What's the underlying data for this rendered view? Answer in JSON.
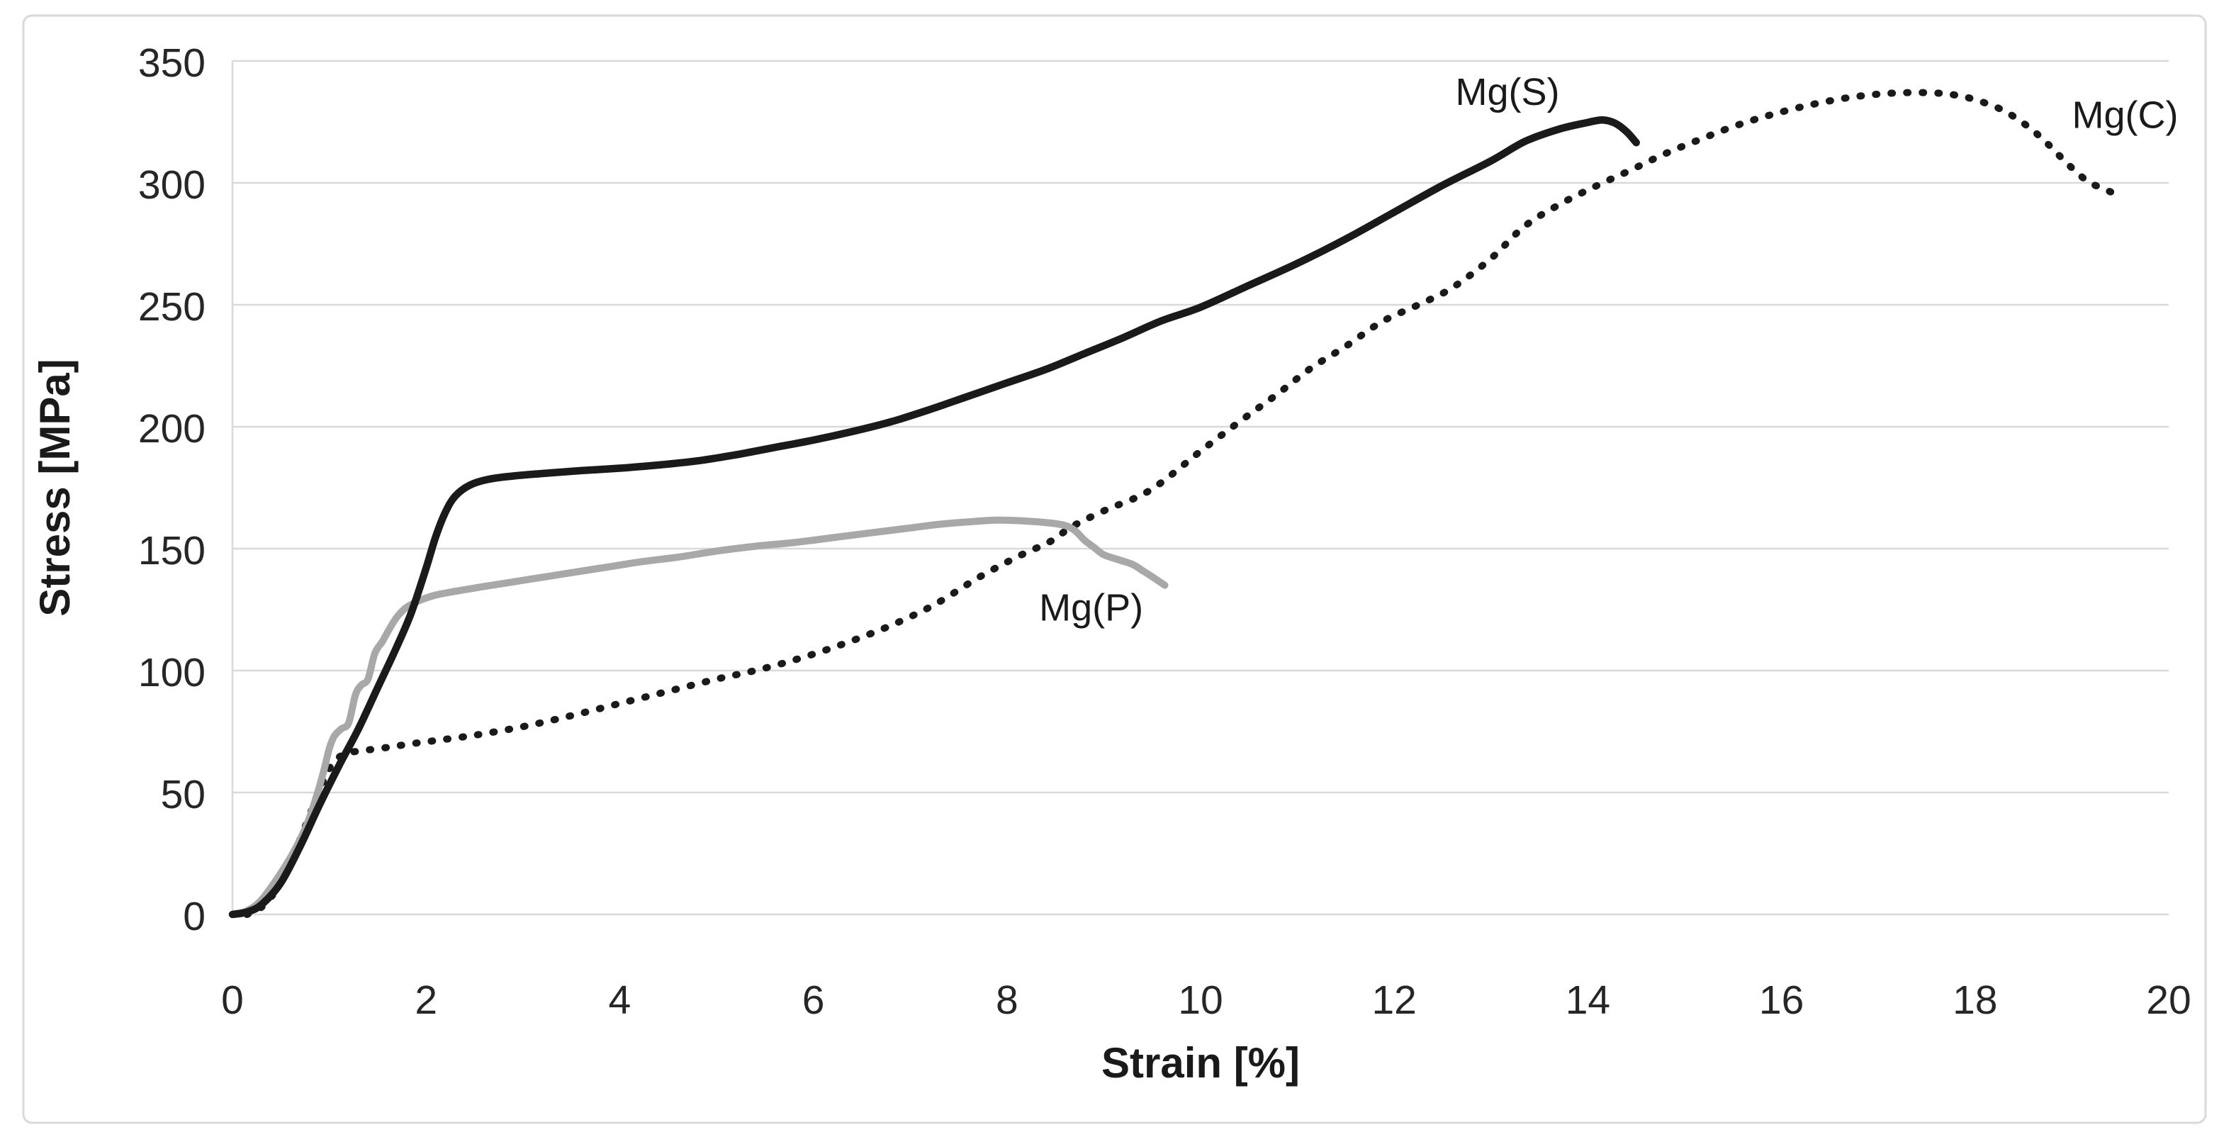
{
  "figure": {
    "background": "#ffffff",
    "border_color": "#d9d9d9",
    "gridline_color": "#d9d9d9",
    "tick_text_color": "#262626",
    "title_text_color": "#1a1a1a"
  },
  "chart_data": {
    "type": "line",
    "title": "",
    "xlabel": "Strain [%]",
    "ylabel": "Stress [MPa]",
    "xlim": [
      0,
      20
    ],
    "ylim": [
      0,
      350
    ],
    "x_ticks": [
      0,
      2,
      4,
      6,
      8,
      10,
      12,
      14,
      16,
      18,
      20
    ],
    "y_ticks": [
      0,
      50,
      100,
      150,
      200,
      250,
      300,
      350
    ],
    "grid": "horizontal",
    "legend_position": "inline-labels",
    "series": [
      {
        "name": "Mg(C)",
        "label": "Mg(C)",
        "style": "dotted",
        "color": "#1a1a1a",
        "width": 10,
        "label_pos": {
          "x": 19.55,
          "y": 328
        },
        "points": [
          [
            0.15,
            0
          ],
          [
            0.3,
            3
          ],
          [
            0.45,
            10
          ],
          [
            0.6,
            22
          ],
          [
            0.72,
            33
          ],
          [
            0.83,
            44
          ],
          [
            0.93,
            54
          ],
          [
            1.02,
            61
          ],
          [
            1.1,
            64.5
          ],
          [
            1.2,
            66.3
          ],
          [
            1.35,
            67.2
          ],
          [
            1.6,
            68.5
          ],
          [
            1.85,
            70
          ],
          [
            2.1,
            71.3
          ],
          [
            2.5,
            73.5
          ],
          [
            3.0,
            77
          ],
          [
            3.5,
            81.5
          ],
          [
            4.0,
            86.5
          ],
          [
            4.5,
            91.5
          ],
          [
            5.0,
            96.5
          ],
          [
            5.45,
            100.5
          ],
          [
            5.9,
            105.5
          ],
          [
            6.35,
            111.5
          ],
          [
            6.8,
            118.5
          ],
          [
            7.25,
            127
          ],
          [
            7.7,
            138
          ],
          [
            8.1,
            146.5
          ],
          [
            8.45,
            153
          ],
          [
            8.67,
            159
          ],
          [
            9.0,
            165.5
          ],
          [
            9.48,
            174
          ],
          [
            10.0,
            190
          ],
          [
            10.4,
            202
          ],
          [
            10.78,
            213
          ],
          [
            11.14,
            224
          ],
          [
            11.5,
            233
          ],
          [
            11.87,
            243
          ],
          [
            12.25,
            250
          ],
          [
            12.6,
            257
          ],
          [
            13.0,
            269
          ],
          [
            13.34,
            282
          ],
          [
            13.7,
            291
          ],
          [
            14.1,
            299
          ],
          [
            14.43,
            305
          ],
          [
            14.8,
            312
          ],
          [
            15.17,
            318
          ],
          [
            15.53,
            323.5
          ],
          [
            15.9,
            328
          ],
          [
            16.3,
            332
          ],
          [
            16.7,
            335
          ],
          [
            17.1,
            336.7
          ],
          [
            17.5,
            337
          ],
          [
            17.8,
            336
          ],
          [
            18.05,
            333.5
          ],
          [
            18.3,
            329.5
          ],
          [
            18.55,
            323
          ],
          [
            18.75,
            316
          ],
          [
            18.95,
            308
          ],
          [
            19.15,
            301
          ],
          [
            19.3,
            298
          ],
          [
            19.42,
            296
          ]
        ]
      },
      {
        "name": "Mg(P)",
        "label": "Mg(P)",
        "style": "solid",
        "color": "#a8a8a8",
        "width": 10,
        "label_pos": {
          "x": 8.87,
          "y": 126
        },
        "points": [
          [
            0,
            0
          ],
          [
            0.15,
            1.5
          ],
          [
            0.3,
            6
          ],
          [
            0.5,
            17
          ],
          [
            0.65,
            27
          ],
          [
            0.78,
            38
          ],
          [
            0.88,
            50
          ],
          [
            0.95,
            60
          ],
          [
            1.0,
            68
          ],
          [
            1.05,
            73
          ],
          [
            1.12,
            76
          ],
          [
            1.2,
            78.5
          ],
          [
            1.27,
            90
          ],
          [
            1.33,
            94
          ],
          [
            1.4,
            96.5
          ],
          [
            1.47,
            107
          ],
          [
            1.55,
            112
          ],
          [
            1.62,
            117
          ],
          [
            1.7,
            122
          ],
          [
            1.8,
            126
          ],
          [
            1.95,
            129
          ],
          [
            2.1,
            131
          ],
          [
            2.3,
            132.5
          ],
          [
            2.6,
            134.5
          ],
          [
            3.0,
            137
          ],
          [
            3.4,
            139.5
          ],
          [
            3.8,
            142
          ],
          [
            4.2,
            144.5
          ],
          [
            4.6,
            146.5
          ],
          [
            5.0,
            149
          ],
          [
            5.4,
            151
          ],
          [
            5.8,
            152.5
          ],
          [
            6.2,
            154.5
          ],
          [
            6.6,
            156.5
          ],
          [
            7.0,
            158.5
          ],
          [
            7.3,
            160
          ],
          [
            7.6,
            161
          ],
          [
            7.9,
            161.7
          ],
          [
            8.2,
            161.3
          ],
          [
            8.45,
            160.5
          ],
          [
            8.6,
            159.5
          ],
          [
            8.7,
            157.5
          ],
          [
            8.8,
            153.5
          ],
          [
            8.9,
            150.5
          ],
          [
            9.0,
            147.5
          ],
          [
            9.15,
            145.5
          ],
          [
            9.3,
            143.5
          ],
          [
            9.4,
            141
          ],
          [
            9.5,
            138.5
          ],
          [
            9.63,
            135
          ]
        ]
      },
      {
        "name": "Mg(S)",
        "label": "Mg(S)",
        "style": "solid",
        "color": "#1a1a1a",
        "width": 10.5,
        "label_pos": {
          "x": 13.17,
          "y": 337.5
        },
        "points": [
          [
            0,
            0
          ],
          [
            0.15,
            1
          ],
          [
            0.3,
            4
          ],
          [
            0.5,
            13
          ],
          [
            0.7,
            28
          ],
          [
            0.9,
            45
          ],
          [
            1.1,
            61
          ],
          [
            1.3,
            76
          ],
          [
            1.5,
            93
          ],
          [
            1.7,
            110
          ],
          [
            1.85,
            124
          ],
          [
            2.0,
            142
          ],
          [
            2.1,
            155
          ],
          [
            2.2,
            165
          ],
          [
            2.3,
            171.5
          ],
          [
            2.45,
            176
          ],
          [
            2.65,
            178.5
          ],
          [
            2.9,
            179.8
          ],
          [
            3.2,
            180.8
          ],
          [
            3.6,
            182
          ],
          [
            4.0,
            183
          ],
          [
            4.4,
            184.3
          ],
          [
            4.8,
            186
          ],
          [
            5.2,
            188.5
          ],
          [
            5.6,
            191.5
          ],
          [
            6.0,
            194.5
          ],
          [
            6.4,
            198
          ],
          [
            6.8,
            202
          ],
          [
            7.2,
            207
          ],
          [
            7.6,
            212.5
          ],
          [
            8.0,
            218
          ],
          [
            8.4,
            223.5
          ],
          [
            8.8,
            230
          ],
          [
            9.2,
            236.5
          ],
          [
            9.6,
            243.5
          ],
          [
            10.0,
            249
          ],
          [
            10.5,
            258
          ],
          [
            11.0,
            267
          ],
          [
            11.5,
            277
          ],
          [
            12.0,
            288
          ],
          [
            12.5,
            299
          ],
          [
            13.0,
            309
          ],
          [
            13.35,
            317
          ],
          [
            13.7,
            322
          ],
          [
            14.0,
            324.8
          ],
          [
            14.15,
            325.8
          ],
          [
            14.28,
            324.5
          ],
          [
            14.4,
            321
          ],
          [
            14.5,
            316.5
          ]
        ]
      }
    ]
  }
}
